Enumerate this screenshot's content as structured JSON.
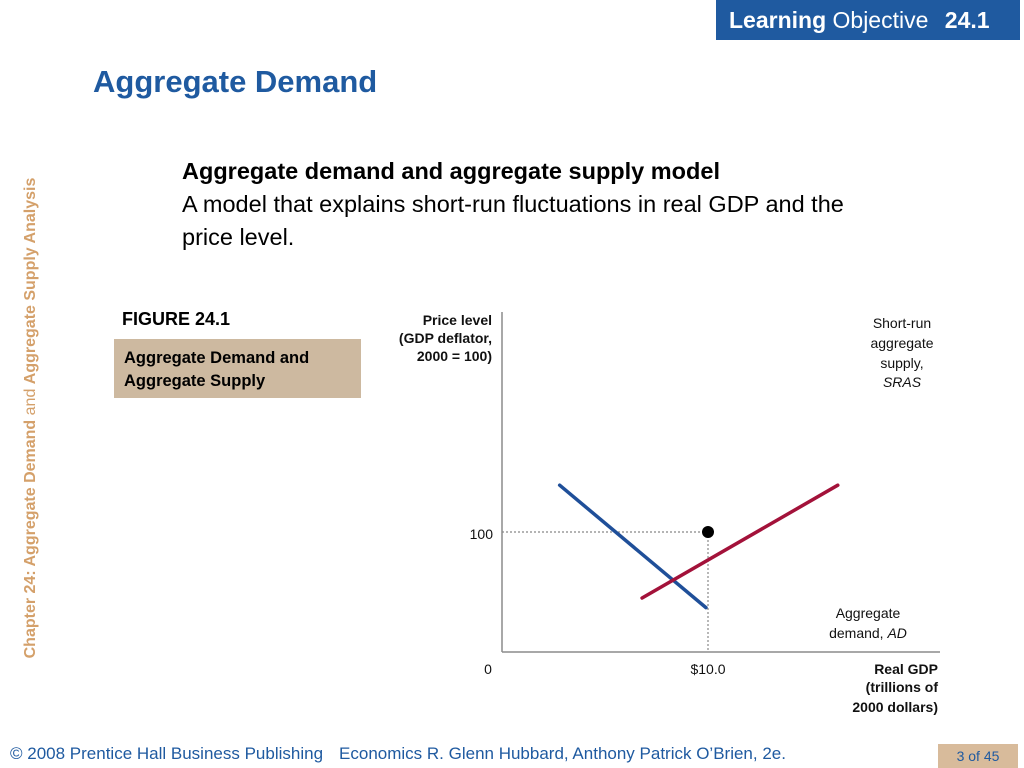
{
  "badge": {
    "bold": "Learning",
    "light": "Objective",
    "number": "24.1"
  },
  "title": "Aggregate Demand",
  "sidebar": {
    "part1": "Chapter 24:  Aggregate Demand",
    "part2": " and ",
    "part3": "Aggregate Supply Analysis"
  },
  "definition": {
    "term": "Aggregate demand and aggregate supply model",
    "text": "A model that explains short-run fluctuations in real GDP and the price level."
  },
  "figure": {
    "label": "FIGURE 24.1",
    "caption": "Aggregate Demand and Aggregate Supply"
  },
  "chart_data": {
    "type": "line",
    "ylabel": [
      "Price level",
      "(GDP deflator,",
      "2000 = 100)"
    ],
    "xlabel": [
      "Real GDP",
      "(trillions of",
      "2000 dollars)"
    ],
    "x_ticks": [
      "0",
      "$10.0"
    ],
    "y_ticks": [
      "100"
    ],
    "series": [
      {
        "name": "Short-run aggregate supply, SRAS",
        "color": "#a3123a",
        "x": [
          6.8,
          16.3
        ],
        "y": [
          45,
          139
        ]
      },
      {
        "name": "Aggregate demand, AD",
        "color": "#1f4f99",
        "x": [
          2.8,
          9.9
        ],
        "y": [
          139,
          37
        ]
      }
    ],
    "equilibrium": {
      "x": 10.0,
      "y": 100
    },
    "series_labels": {
      "sras": [
        "Short-run",
        "aggregate",
        "supply,",
        "SRAS"
      ],
      "ad": [
        "Aggregate",
        "demand, ",
        "AD"
      ]
    }
  },
  "footer": {
    "copyright": "© 2008 Prentice Hall Business Publishing",
    "book": "Economics  R. Glenn Hubbard, Anthony Patrick O’Brien, 2e."
  },
  "page": "3 of 45"
}
